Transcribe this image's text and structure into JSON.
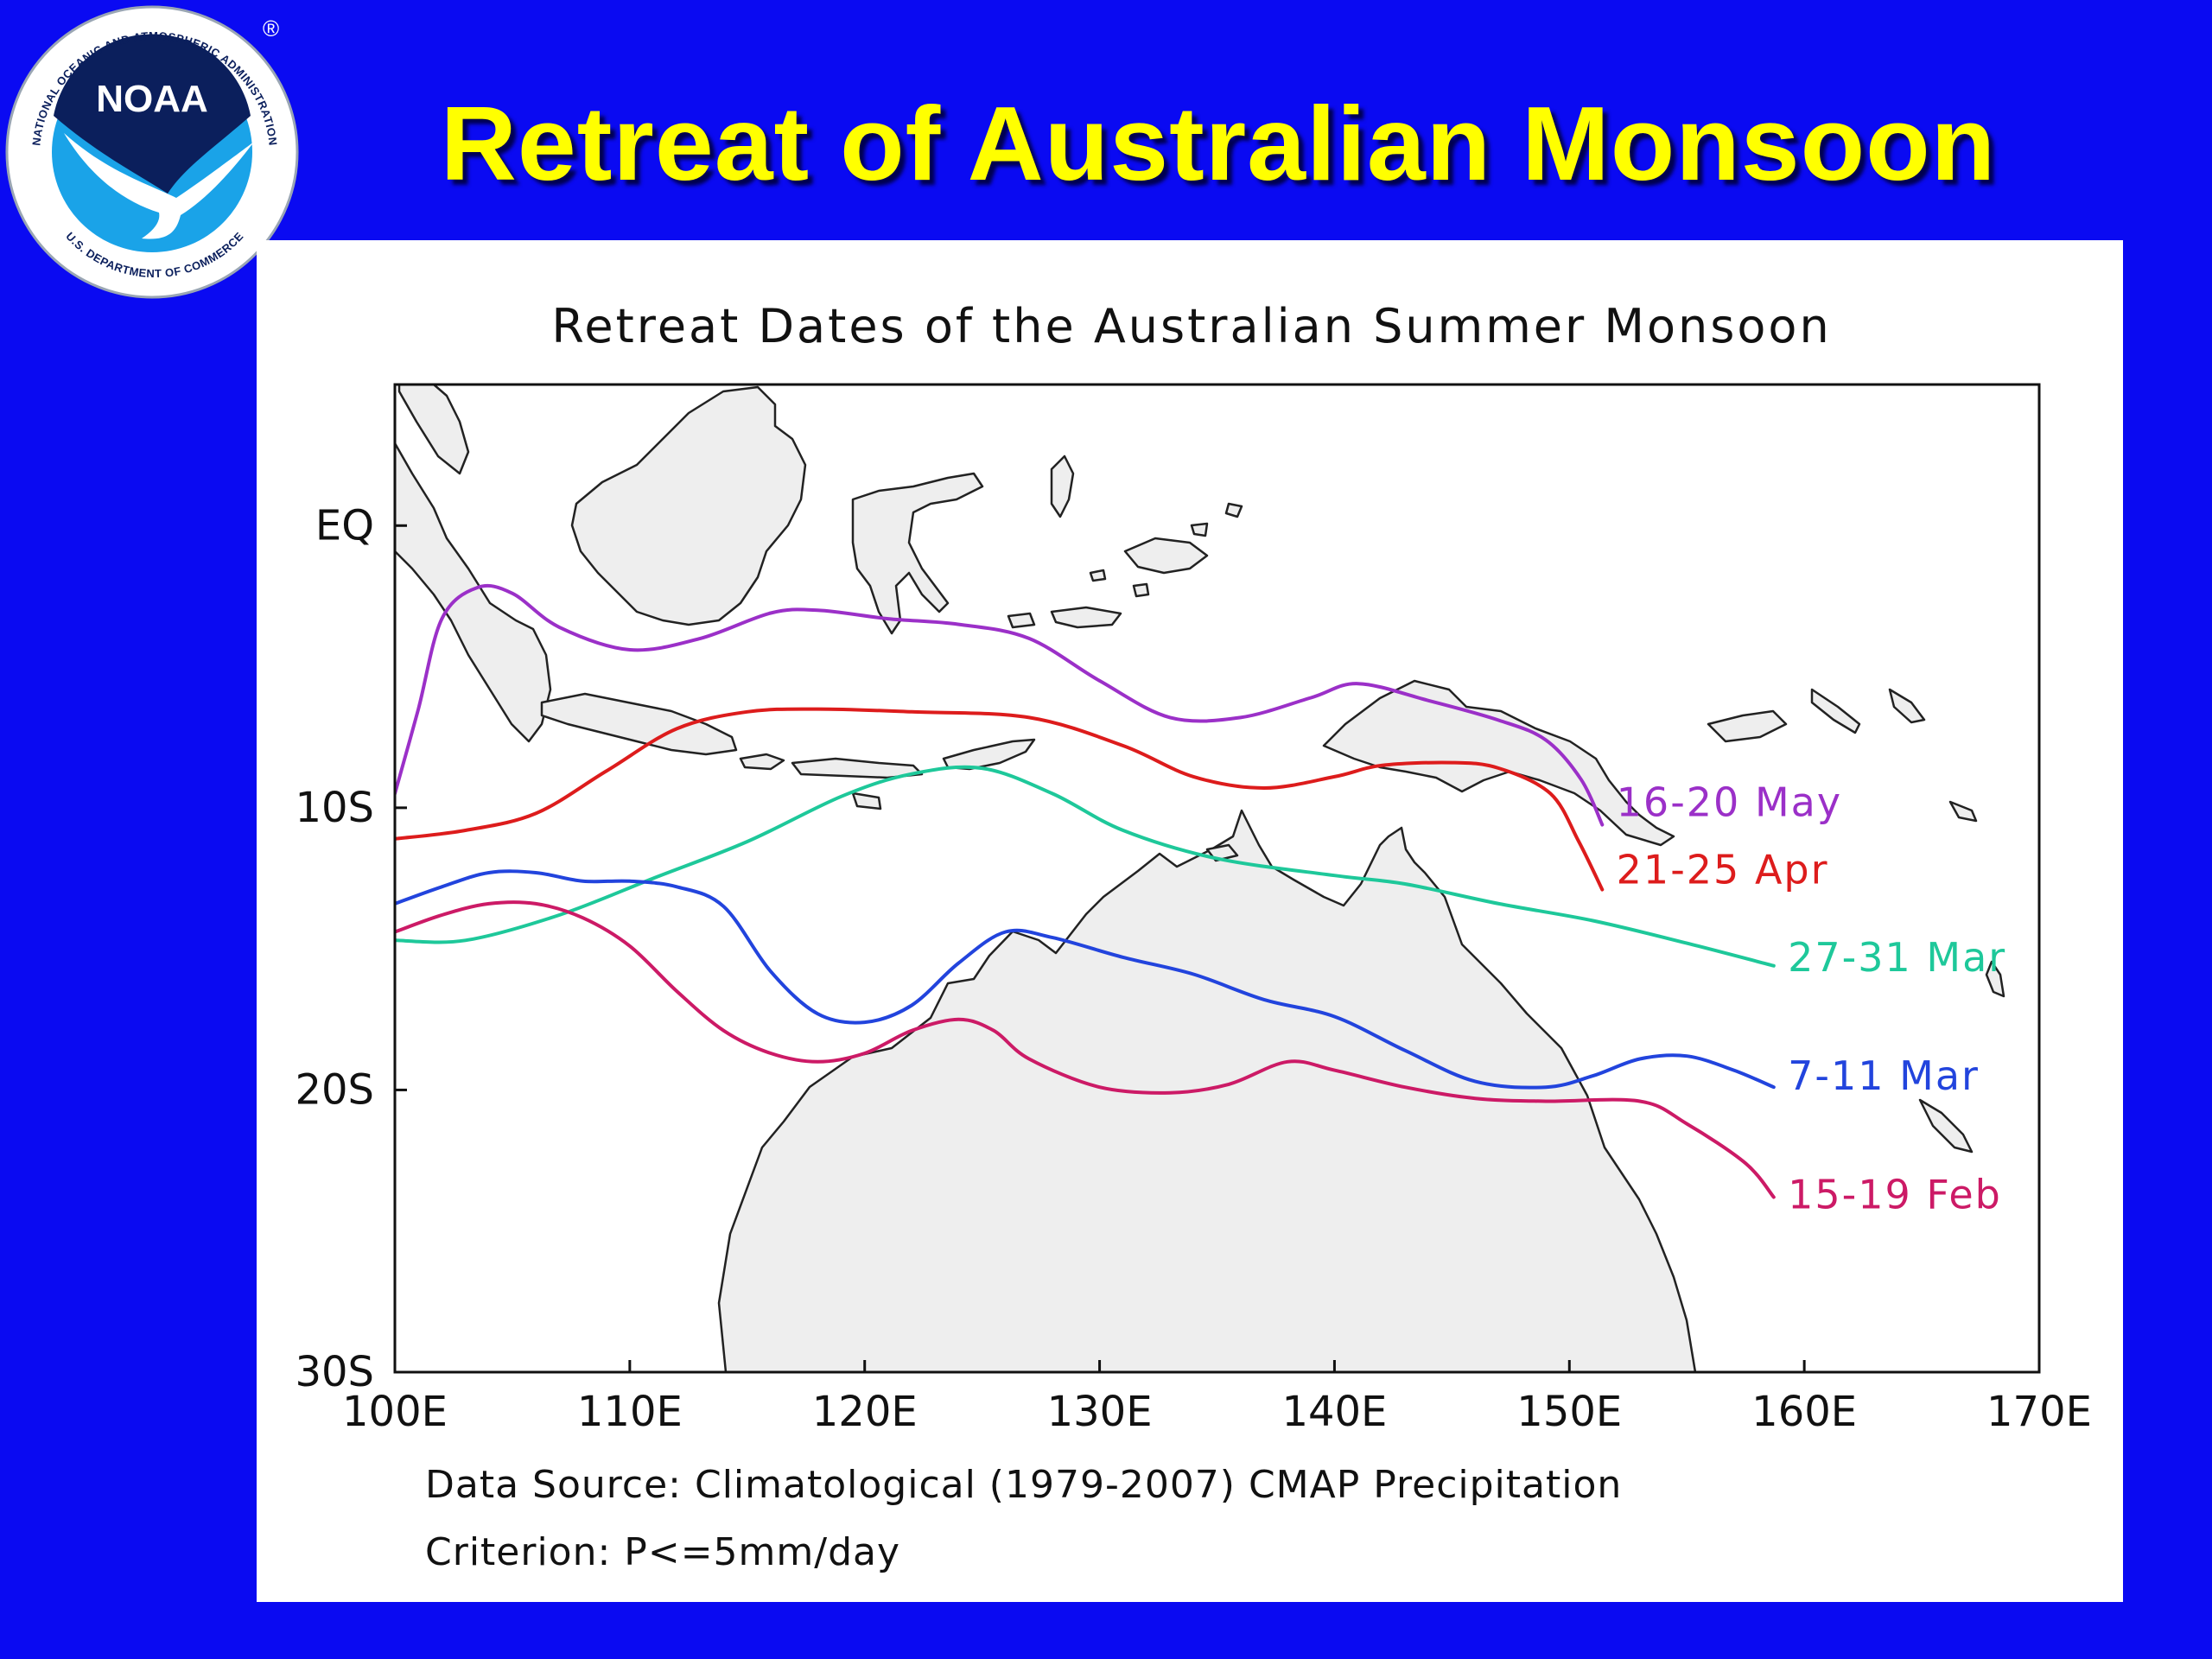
{
  "slide": {
    "title": "Retreat of Australian Monsoon"
  },
  "logo": {
    "center_text": "NOAA",
    "ring_text_top": "NATIONAL OCEANIC AND ATMOSPHERIC ADMINISTRATION",
    "ring_text_bottom": "U.S. DEPARTMENT OF COMMERCE",
    "registered_mark": "®",
    "colors": {
      "ring": "#ffffff",
      "inner": "#1aa3e8",
      "center": "#0b1f5c"
    }
  },
  "figure": {
    "title": "Retreat Dates of the Australian Summer Monsoon",
    "footnote_source": "Data Source: Climatological (1979-2007) CMAP Precipitation",
    "footnote_criterion": "Criterion: P<=5mm/day",
    "land_color": "#eeeeee"
  },
  "chart_data": {
    "type": "line",
    "xlim": [
      100,
      170
    ],
    "ylim": [
      -30,
      5
    ],
    "x_ticks": [
      {
        "value": 100,
        "label": "100E"
      },
      {
        "value": 110,
        "label": "110E"
      },
      {
        "value": 120,
        "label": "120E"
      },
      {
        "value": 130,
        "label": "130E"
      },
      {
        "value": 140,
        "label": "140E"
      },
      {
        "value": 150,
        "label": "150E"
      },
      {
        "value": 160,
        "label": "160E"
      },
      {
        "value": 170,
        "label": "170E"
      }
    ],
    "y_ticks": [
      {
        "value": 0,
        "label": "EQ"
      },
      {
        "value": -10,
        "label": "10S"
      },
      {
        "value": -20,
        "label": "20S"
      },
      {
        "value": -30,
        "label": "30S"
      }
    ],
    "series": [
      {
        "name": "16-20 May",
        "color": "#9b30c8",
        "label_at": [
          152,
          -9.8
        ],
        "points": [
          [
            100,
            -9.5
          ],
          [
            101,
            -6.5
          ],
          [
            102,
            -3.3
          ],
          [
            103.5,
            -2.2
          ],
          [
            105,
            -2.4
          ],
          [
            107,
            -3.6
          ],
          [
            110,
            -4.4
          ],
          [
            113,
            -4.0
          ],
          [
            116,
            -3.1
          ],
          [
            118,
            -3.0
          ],
          [
            121,
            -3.3
          ],
          [
            124,
            -3.5
          ],
          [
            127,
            -4.0
          ],
          [
            130,
            -5.5
          ],
          [
            133,
            -6.8
          ],
          [
            136,
            -6.8
          ],
          [
            139,
            -6.1
          ],
          [
            141,
            -5.6
          ],
          [
            144,
            -6.2
          ],
          [
            147,
            -6.9
          ],
          [
            149,
            -7.6
          ],
          [
            150.5,
            -9.0
          ],
          [
            151.4,
            -10.6
          ]
        ]
      },
      {
        "name": "21-25 Apr",
        "color": "#dd1c1c",
        "label_at": [
          152,
          -12.2
        ],
        "points": [
          [
            100,
            -11.1
          ],
          [
            103,
            -10.8
          ],
          [
            106,
            -10.2
          ],
          [
            109,
            -8.7
          ],
          [
            112,
            -7.2
          ],
          [
            115,
            -6.6
          ],
          [
            118,
            -6.5
          ],
          [
            122,
            -6.6
          ],
          [
            127,
            -6.8
          ],
          [
            131,
            -7.8
          ],
          [
            134,
            -8.9
          ],
          [
            137,
            -9.3
          ],
          [
            140,
            -8.9
          ],
          [
            142,
            -8.5
          ],
          [
            145,
            -8.4
          ],
          [
            147,
            -8.6
          ],
          [
            149.2,
            -9.5
          ],
          [
            150.4,
            -11.2
          ],
          [
            151.4,
            -12.9
          ]
        ]
      },
      {
        "name": "27-31 Mar",
        "color": "#1ec89a",
        "label_at": [
          159.3,
          -15.3
        ],
        "points": [
          [
            100,
            -14.7
          ],
          [
            103,
            -14.7
          ],
          [
            107,
            -13.8
          ],
          [
            111,
            -12.5
          ],
          [
            115,
            -11.2
          ],
          [
            119,
            -9.6
          ],
          [
            122,
            -8.8
          ],
          [
            125,
            -8.6
          ],
          [
            128,
            -9.5
          ],
          [
            131,
            -10.8
          ],
          [
            135,
            -11.8
          ],
          [
            140,
            -12.4
          ],
          [
            143,
            -12.7
          ],
          [
            147,
            -13.4
          ],
          [
            151,
            -14.0
          ],
          [
            155,
            -14.8
          ],
          [
            158.7,
            -15.6
          ]
        ]
      },
      {
        "name": "7-11 Mar",
        "color": "#2244dd",
        "label_at": [
          159.3,
          -19.5
        ],
        "points": [
          [
            100,
            -13.4
          ],
          [
            102,
            -12.8
          ],
          [
            104,
            -12.3
          ],
          [
            106,
            -12.3
          ],
          [
            108,
            -12.6
          ],
          [
            110,
            -12.6
          ],
          [
            112,
            -12.8
          ],
          [
            114,
            -13.5
          ],
          [
            116,
            -15.8
          ],
          [
            118,
            -17.3
          ],
          [
            120,
            -17.6
          ],
          [
            122,
            -17.0
          ],
          [
            124,
            -15.5
          ],
          [
            126,
            -14.4
          ],
          [
            128,
            -14.6
          ],
          [
            131,
            -15.3
          ],
          [
            134,
            -15.9
          ],
          [
            137,
            -16.8
          ],
          [
            140,
            -17.4
          ],
          [
            143,
            -18.6
          ],
          [
            146,
            -19.7
          ],
          [
            149,
            -19.9
          ],
          [
            151,
            -19.5
          ],
          [
            153,
            -18.9
          ],
          [
            155,
            -18.8
          ],
          [
            157,
            -19.3
          ],
          [
            158.7,
            -19.9
          ]
        ]
      },
      {
        "name": "15-19 Feb",
        "color": "#cc1a66",
        "label_at": [
          159.3,
          -23.7
        ],
        "points": [
          [
            100,
            -14.4
          ],
          [
            102,
            -13.8
          ],
          [
            104,
            -13.4
          ],
          [
            106,
            -13.4
          ],
          [
            108,
            -13.9
          ],
          [
            110,
            -14.9
          ],
          [
            112,
            -16.5
          ],
          [
            114,
            -17.9
          ],
          [
            116,
            -18.7
          ],
          [
            118,
            -19.0
          ],
          [
            120,
            -18.7
          ],
          [
            122,
            -17.9
          ],
          [
            124,
            -17.5
          ],
          [
            125.5,
            -17.9
          ],
          [
            127,
            -18.9
          ],
          [
            130,
            -19.9
          ],
          [
            133,
            -20.1
          ],
          [
            135.5,
            -19.8
          ],
          [
            138,
            -19.0
          ],
          [
            140,
            -19.3
          ],
          [
            143,
            -19.9
          ],
          [
            146,
            -20.3
          ],
          [
            149,
            -20.4
          ],
          [
            153,
            -20.4
          ],
          [
            155,
            -21.2
          ],
          [
            157.5,
            -22.6
          ],
          [
            158.7,
            -23.8
          ]
        ]
      }
    ]
  }
}
